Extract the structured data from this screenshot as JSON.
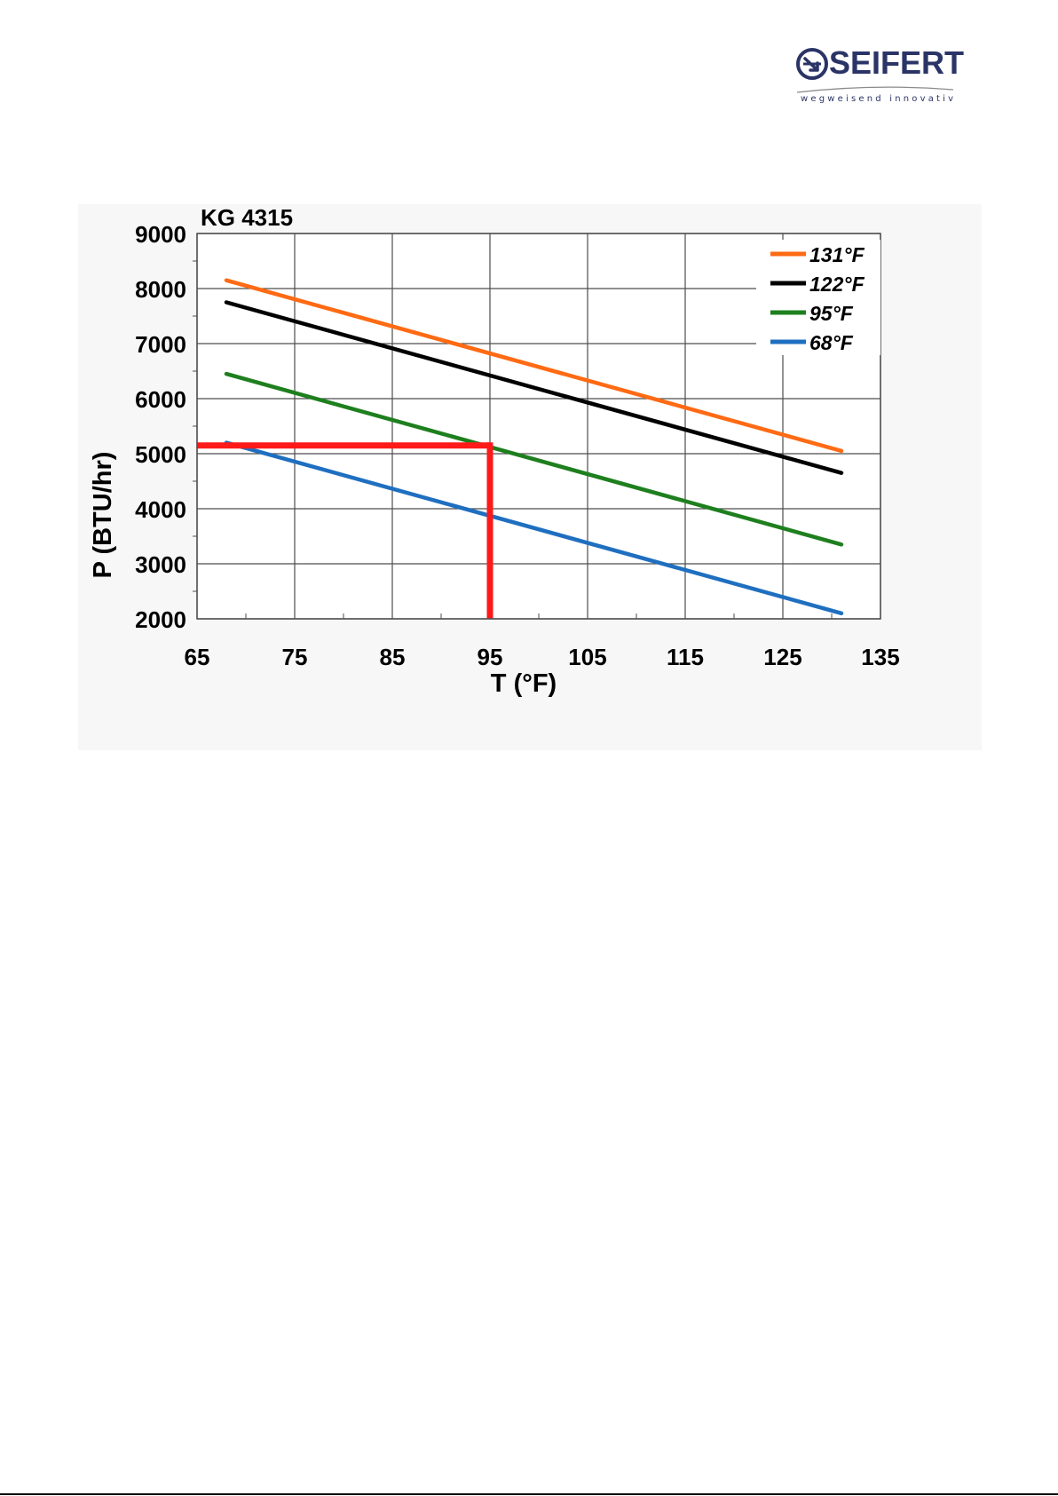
{
  "logo": {
    "name": "SEIFERT",
    "tagline": "wegweisend innovativ",
    "color": "#2b3466"
  },
  "chart_data": {
    "type": "line",
    "title": "KG 4315",
    "xlabel": "T (°F)",
    "ylabel": "P (BTU/hr)",
    "xlim": [
      65,
      135
    ],
    "ylim": [
      2000,
      9000
    ],
    "xticks": [
      65,
      75,
      85,
      95,
      105,
      115,
      125,
      135
    ],
    "yticks": [
      2000,
      3000,
      4000,
      5000,
      6000,
      7000,
      8000,
      9000
    ],
    "grid": true,
    "legend_position": "top-right",
    "series": [
      {
        "name": "131°F",
        "color": "#ff6a13",
        "x": [
          68,
          131
        ],
        "y": [
          8150,
          5050
        ]
      },
      {
        "name": "122°F",
        "color": "#000000",
        "x": [
          68,
          131
        ],
        "y": [
          7750,
          4650
        ]
      },
      {
        "name": "95°F",
        "color": "#1e7f1e",
        "x": [
          68,
          131
        ],
        "y": [
          6450,
          3350
        ]
      },
      {
        "name": "68°F",
        "color": "#1f6fc0",
        "x": [
          68,
          131
        ],
        "y": [
          5200,
          2100
        ]
      }
    ],
    "annotations": [
      {
        "type": "reading",
        "color": "#ff1a1a",
        "x": 95,
        "y": 5150
      }
    ]
  }
}
